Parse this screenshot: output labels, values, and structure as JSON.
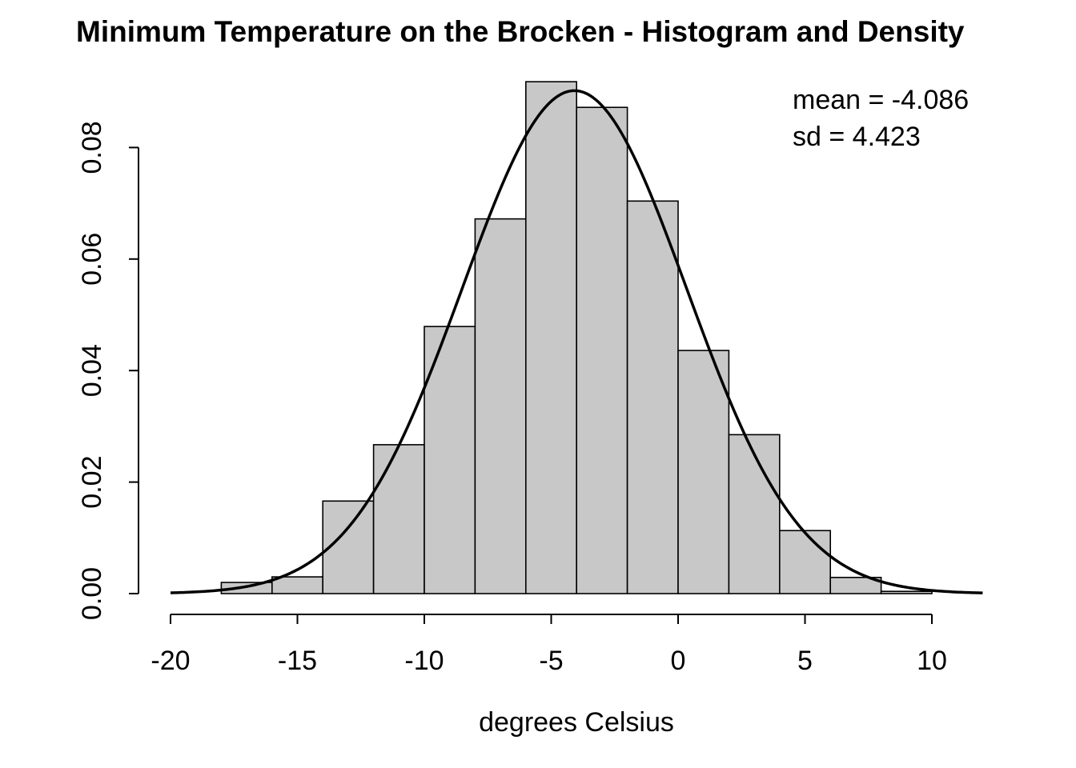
{
  "chart_data": {
    "type": "bar",
    "title": "Minimum Temperature on the Brocken - Histogram and Density",
    "xlabel": "degrees Celsius",
    "ylabel": "",
    "xlim": [
      -20,
      12
    ],
    "ylim": [
      0,
      0.09
    ],
    "x_ticks": [
      -20,
      -15,
      -10,
      -5,
      0,
      5,
      10
    ],
    "x_tick_labels": [
      "-20",
      "-15",
      "-10",
      "-5",
      "0",
      "5",
      "10"
    ],
    "y_ticks": [
      0,
      0.02,
      0.04,
      0.06,
      0.08
    ],
    "y_tick_labels": [
      "0.00",
      "0.02",
      "0.04",
      "0.06",
      "0.08"
    ],
    "bins": [
      {
        "from": -20,
        "to": -18,
        "density": 0.0
      },
      {
        "from": -18,
        "to": -16,
        "density": 0.002
      },
      {
        "from": -16,
        "to": -14,
        "density": 0.003
      },
      {
        "from": -14,
        "to": -12,
        "density": 0.0166
      },
      {
        "from": -12,
        "to": -10,
        "density": 0.0267
      },
      {
        "from": -10,
        "to": -8,
        "density": 0.0479
      },
      {
        "from": -8,
        "to": -6,
        "density": 0.0672
      },
      {
        "from": -6,
        "to": -4,
        "density": 0.0918
      },
      {
        "from": -4,
        "to": -2,
        "density": 0.0872
      },
      {
        "from": -2,
        "to": 0,
        "density": 0.0704
      },
      {
        "from": 0,
        "to": 2,
        "density": 0.0436
      },
      {
        "from": 2,
        "to": 4,
        "density": 0.0285
      },
      {
        "from": 4,
        "to": 6,
        "density": 0.0113
      },
      {
        "from": 6,
        "to": 8,
        "density": 0.0029
      },
      {
        "from": 8,
        "to": 10,
        "density": 0.0004
      }
    ],
    "density_curve": {
      "type": "line",
      "distribution": "normal",
      "mean": -4.086,
      "sd": 4.423,
      "x_range": [
        -20,
        12
      ]
    },
    "annotations": {
      "mean_label": "mean =  -4.086",
      "sd_label": "sd =  4.423"
    },
    "grid": false,
    "legend": "none"
  }
}
